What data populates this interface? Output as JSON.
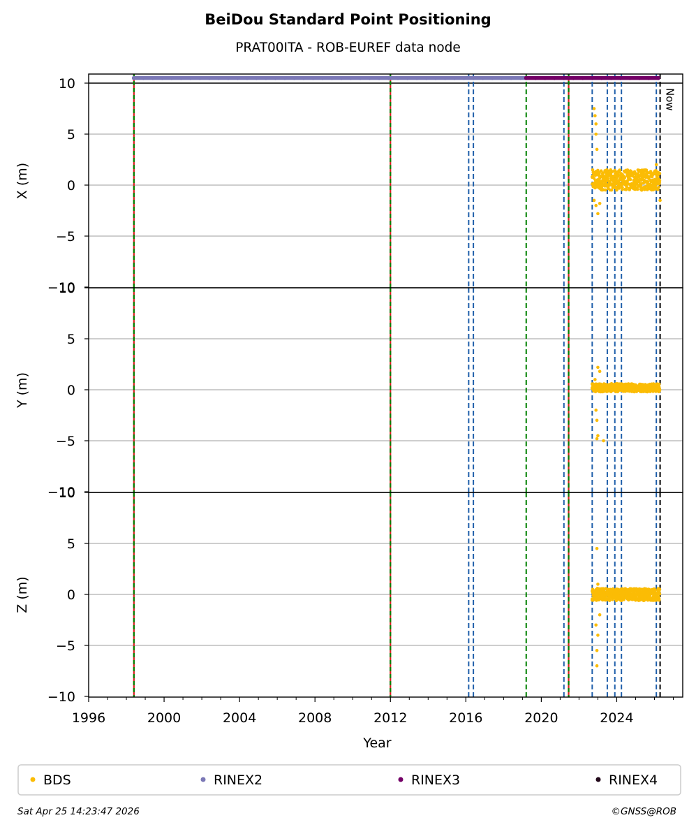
{
  "title": "BeiDou Standard Point Positioning",
  "subtitle": "PRAT00ITA - ROB-EUREF data node",
  "footer": {
    "timestamp": "Sat Apr 25 14:23:47 2026",
    "credit": "©GNSS@ROB"
  },
  "chart_data": {
    "type": "scatter",
    "x_axis": {
      "label": "Year",
      "range": [
        1996,
        2027.5
      ],
      "ticks": [
        "1996",
        "2000",
        "2004",
        "2008",
        "2012",
        "2016",
        "2020",
        "2024"
      ],
      "tick_values": [
        1996,
        2000,
        2004,
        2008,
        2012,
        2016,
        2020,
        2024
      ]
    },
    "panels": [
      {
        "name": "X",
        "ylabel": "X (m)",
        "ylim": [
          -10,
          10
        ],
        "ticks": [
          "−10",
          "−5",
          "0",
          "5",
          "10"
        ],
        "tick_values": [
          -10,
          -5,
          0,
          5,
          10
        ],
        "bds": {
          "x_start": 2022.7,
          "x_end": 2026.3,
          "center": 0.5,
          "spread": 1.0,
          "outliers": [
            [
              2022.8,
              7.5
            ],
            [
              2022.85,
              6.8
            ],
            [
              2022.9,
              6.0
            ],
            [
              2022.9,
              5.0
            ],
            [
              2022.95,
              3.5
            ],
            [
              2022.8,
              -1.5
            ],
            [
              2022.9,
              -2.0
            ],
            [
              2023.0,
              -2.8
            ],
            [
              2023.1,
              -1.8
            ],
            [
              2026.1,
              2.0
            ],
            [
              2026.3,
              -1.5
            ]
          ]
        }
      },
      {
        "name": "Y",
        "ylabel": "Y (m)",
        "ylim": [
          -10,
          10
        ],
        "ticks": [
          "−10",
          "−5",
          "0",
          "5",
          "10"
        ],
        "tick_values": [
          -10,
          -5,
          0,
          5,
          10
        ],
        "bds": {
          "x_start": 2022.7,
          "x_end": 2026.3,
          "center": 0.2,
          "spread": 0.4,
          "outliers": [
            [
              2023.0,
              2.2
            ],
            [
              2023.1,
              1.8
            ],
            [
              2022.9,
              -2.0
            ],
            [
              2022.95,
              -3.0
            ],
            [
              2023.0,
              -4.5
            ],
            [
              2022.95,
              -4.8
            ],
            [
              2023.3,
              -5.0
            ],
            [
              2022.85,
              1.0
            ]
          ]
        }
      },
      {
        "name": "Z",
        "ylabel": "Z (m)",
        "ylim": [
          -10,
          10
        ],
        "ticks": [
          "−10",
          "−5",
          "0",
          "5",
          "10"
        ],
        "tick_values": [
          -10,
          -5,
          0,
          5,
          10
        ],
        "bds": {
          "x_start": 2022.7,
          "x_end": 2026.3,
          "center": 0.0,
          "spread": 0.6,
          "outliers": [
            [
              2022.95,
              4.5
            ],
            [
              2023.0,
              1.0
            ],
            [
              2022.9,
              -3.0
            ],
            [
              2023.0,
              -4.0
            ],
            [
              2022.95,
              -5.5
            ],
            [
              2022.95,
              -7.0
            ],
            [
              2023.1,
              -2.0
            ]
          ]
        }
      }
    ],
    "rinex2_bar": {
      "x_start": 1998.4,
      "x_end": 2019.2,
      "y": 10.5,
      "color": "#7b78b6"
    },
    "rinex3_bar": {
      "x_start": 2019.2,
      "x_end": 2026.2,
      "y": 10.5,
      "color": "#730066"
    },
    "vertical_lines": [
      {
        "x": 1998.4,
        "style": "red-green"
      },
      {
        "x": 2012.0,
        "style": "red-green"
      },
      {
        "x": 2016.15,
        "style": "blue-dashed"
      },
      {
        "x": 2016.4,
        "style": "blue-dashed"
      },
      {
        "x": 2019.2,
        "style": "green-dashed"
      },
      {
        "x": 2021.2,
        "style": "blue-dashed"
      },
      {
        "x": 2021.45,
        "style": "red-green"
      },
      {
        "x": 2022.7,
        "style": "blue-dashed"
      },
      {
        "x": 2023.5,
        "style": "blue-dashed"
      },
      {
        "x": 2023.9,
        "style": "blue-dashed"
      },
      {
        "x": 2024.25,
        "style": "blue-dashed"
      },
      {
        "x": 2026.1,
        "style": "blue-dashed"
      },
      {
        "x": 2026.3,
        "style": "black-dashed"
      }
    ],
    "now_label": {
      "text": "Now",
      "x": 2026.3
    },
    "legend": {
      "placement": "bottom",
      "entries": [
        {
          "name": "BDS",
          "color": "#fbbc05"
        },
        {
          "name": "RINEX2",
          "color": "#7b78b6"
        },
        {
          "name": "RINEX3",
          "color": "#730066"
        },
        {
          "name": "RINEX4",
          "color": "#22081a"
        }
      ]
    },
    "grid": "horizontal"
  }
}
